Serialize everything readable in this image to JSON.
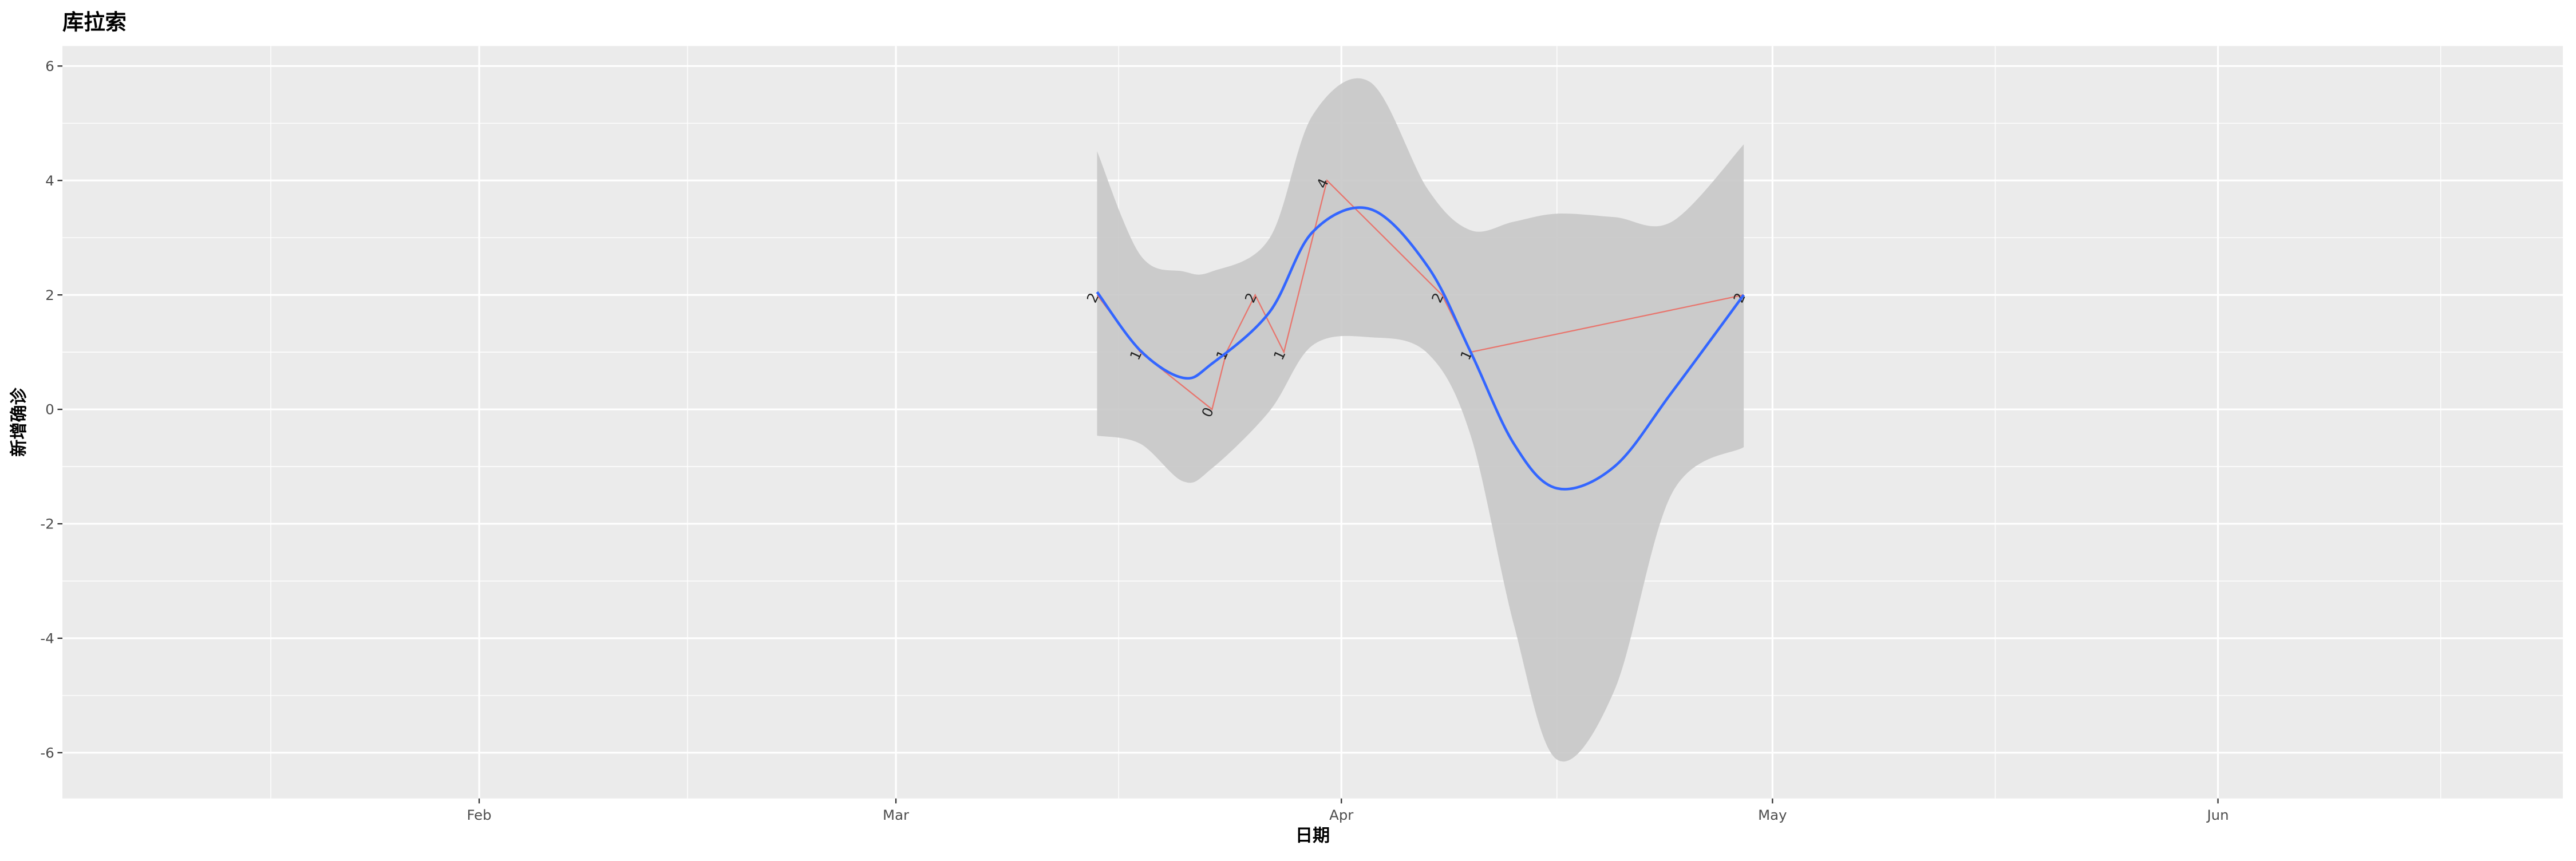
{
  "chart_data": {
    "type": "line",
    "title": "库拉索",
    "xlabel": "日期",
    "ylabel": "新增确诊",
    "x": [
      74,
      77,
      82,
      83,
      85,
      87,
      90,
      98,
      100,
      119
    ],
    "series": [
      {
        "color": "#e8756d",
        "values": [
          2,
          1,
          0,
          1,
          2,
          1,
          4,
          2,
          1,
          2
        ]
      }
    ],
    "smooth": {
      "color": "#3366ff",
      "band_color": "#c8c8c8",
      "x": [
        74,
        77,
        80,
        82,
        86,
        89,
        93,
        97,
        100,
        103,
        106,
        110,
        114,
        119
      ],
      "values": [
        2.05,
        1.03,
        0.55,
        0.8,
        1.7,
        3.1,
        3.5,
        2.5,
        1.0,
        -0.6,
        -1.38,
        -1.0,
        0.3,
        2.0
      ],
      "lower": [
        -0.46,
        -0.6,
        -1.26,
        -1.03,
        -0.03,
        1.12,
        1.26,
        0.98,
        -0.46,
        -3.76,
        -6.12,
        -4.91,
        -1.47,
        -0.66
      ],
      "upper": [
        4.51,
        2.7,
        2.41,
        2.41,
        2.99,
        5.14,
        5.72,
        3.85,
        3.13,
        3.28,
        3.42,
        3.36,
        3.28,
        4.63
      ]
    },
    "xlim": [
      2,
      176
    ],
    "xticks": [
      {
        "value": 31,
        "label": "Feb"
      },
      {
        "value": 60,
        "label": "Mar"
      },
      {
        "value": 91,
        "label": "Apr"
      },
      {
        "value": 121,
        "label": "May"
      },
      {
        "value": 152,
        "label": "Jun"
      }
    ],
    "ylim": [
      -6.8,
      6.35
    ],
    "yticks": [
      -6,
      -4,
      -2,
      0,
      2,
      4,
      6
    ],
    "grid": true
  }
}
